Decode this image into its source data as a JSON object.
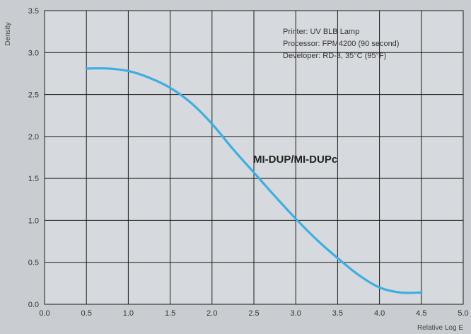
{
  "chart_data": {
    "type": "line",
    "xlabel": "Relative Log E",
    "ylabel": "Density",
    "xlim": [
      0.0,
      5.0
    ],
    "ylim": [
      0.0,
      3.5
    ],
    "x_ticks": [
      "0.0",
      "0.5",
      "1.0",
      "1.5",
      "2.0",
      "2.5",
      "3.0",
      "3.5",
      "4.0",
      "4.5",
      "5.0"
    ],
    "y_ticks": [
      "0.0",
      "0.5",
      "1.0",
      "1.5",
      "2.0",
      "2.5",
      "3.0",
      "3.5"
    ],
    "grid": true,
    "annotations": [
      "Printer: UV BLB Lamp",
      "Processor: FPM4200 (90 second)",
      "Developer: RD-3, 35°C (95°F)"
    ],
    "series": [
      {
        "name": "MI-DUP/MI-DUPc",
        "color": "#3eaee0",
        "x": [
          0.5,
          0.75,
          1.0,
          1.25,
          1.5,
          1.75,
          2.0,
          2.25,
          2.5,
          2.75,
          3.0,
          3.25,
          3.5,
          3.75,
          4.0,
          4.25,
          4.5
        ],
        "y": [
          2.81,
          2.81,
          2.78,
          2.7,
          2.58,
          2.4,
          2.15,
          1.85,
          1.57,
          1.29,
          1.02,
          0.77,
          0.55,
          0.35,
          0.2,
          0.14,
          0.14
        ]
      }
    ]
  }
}
